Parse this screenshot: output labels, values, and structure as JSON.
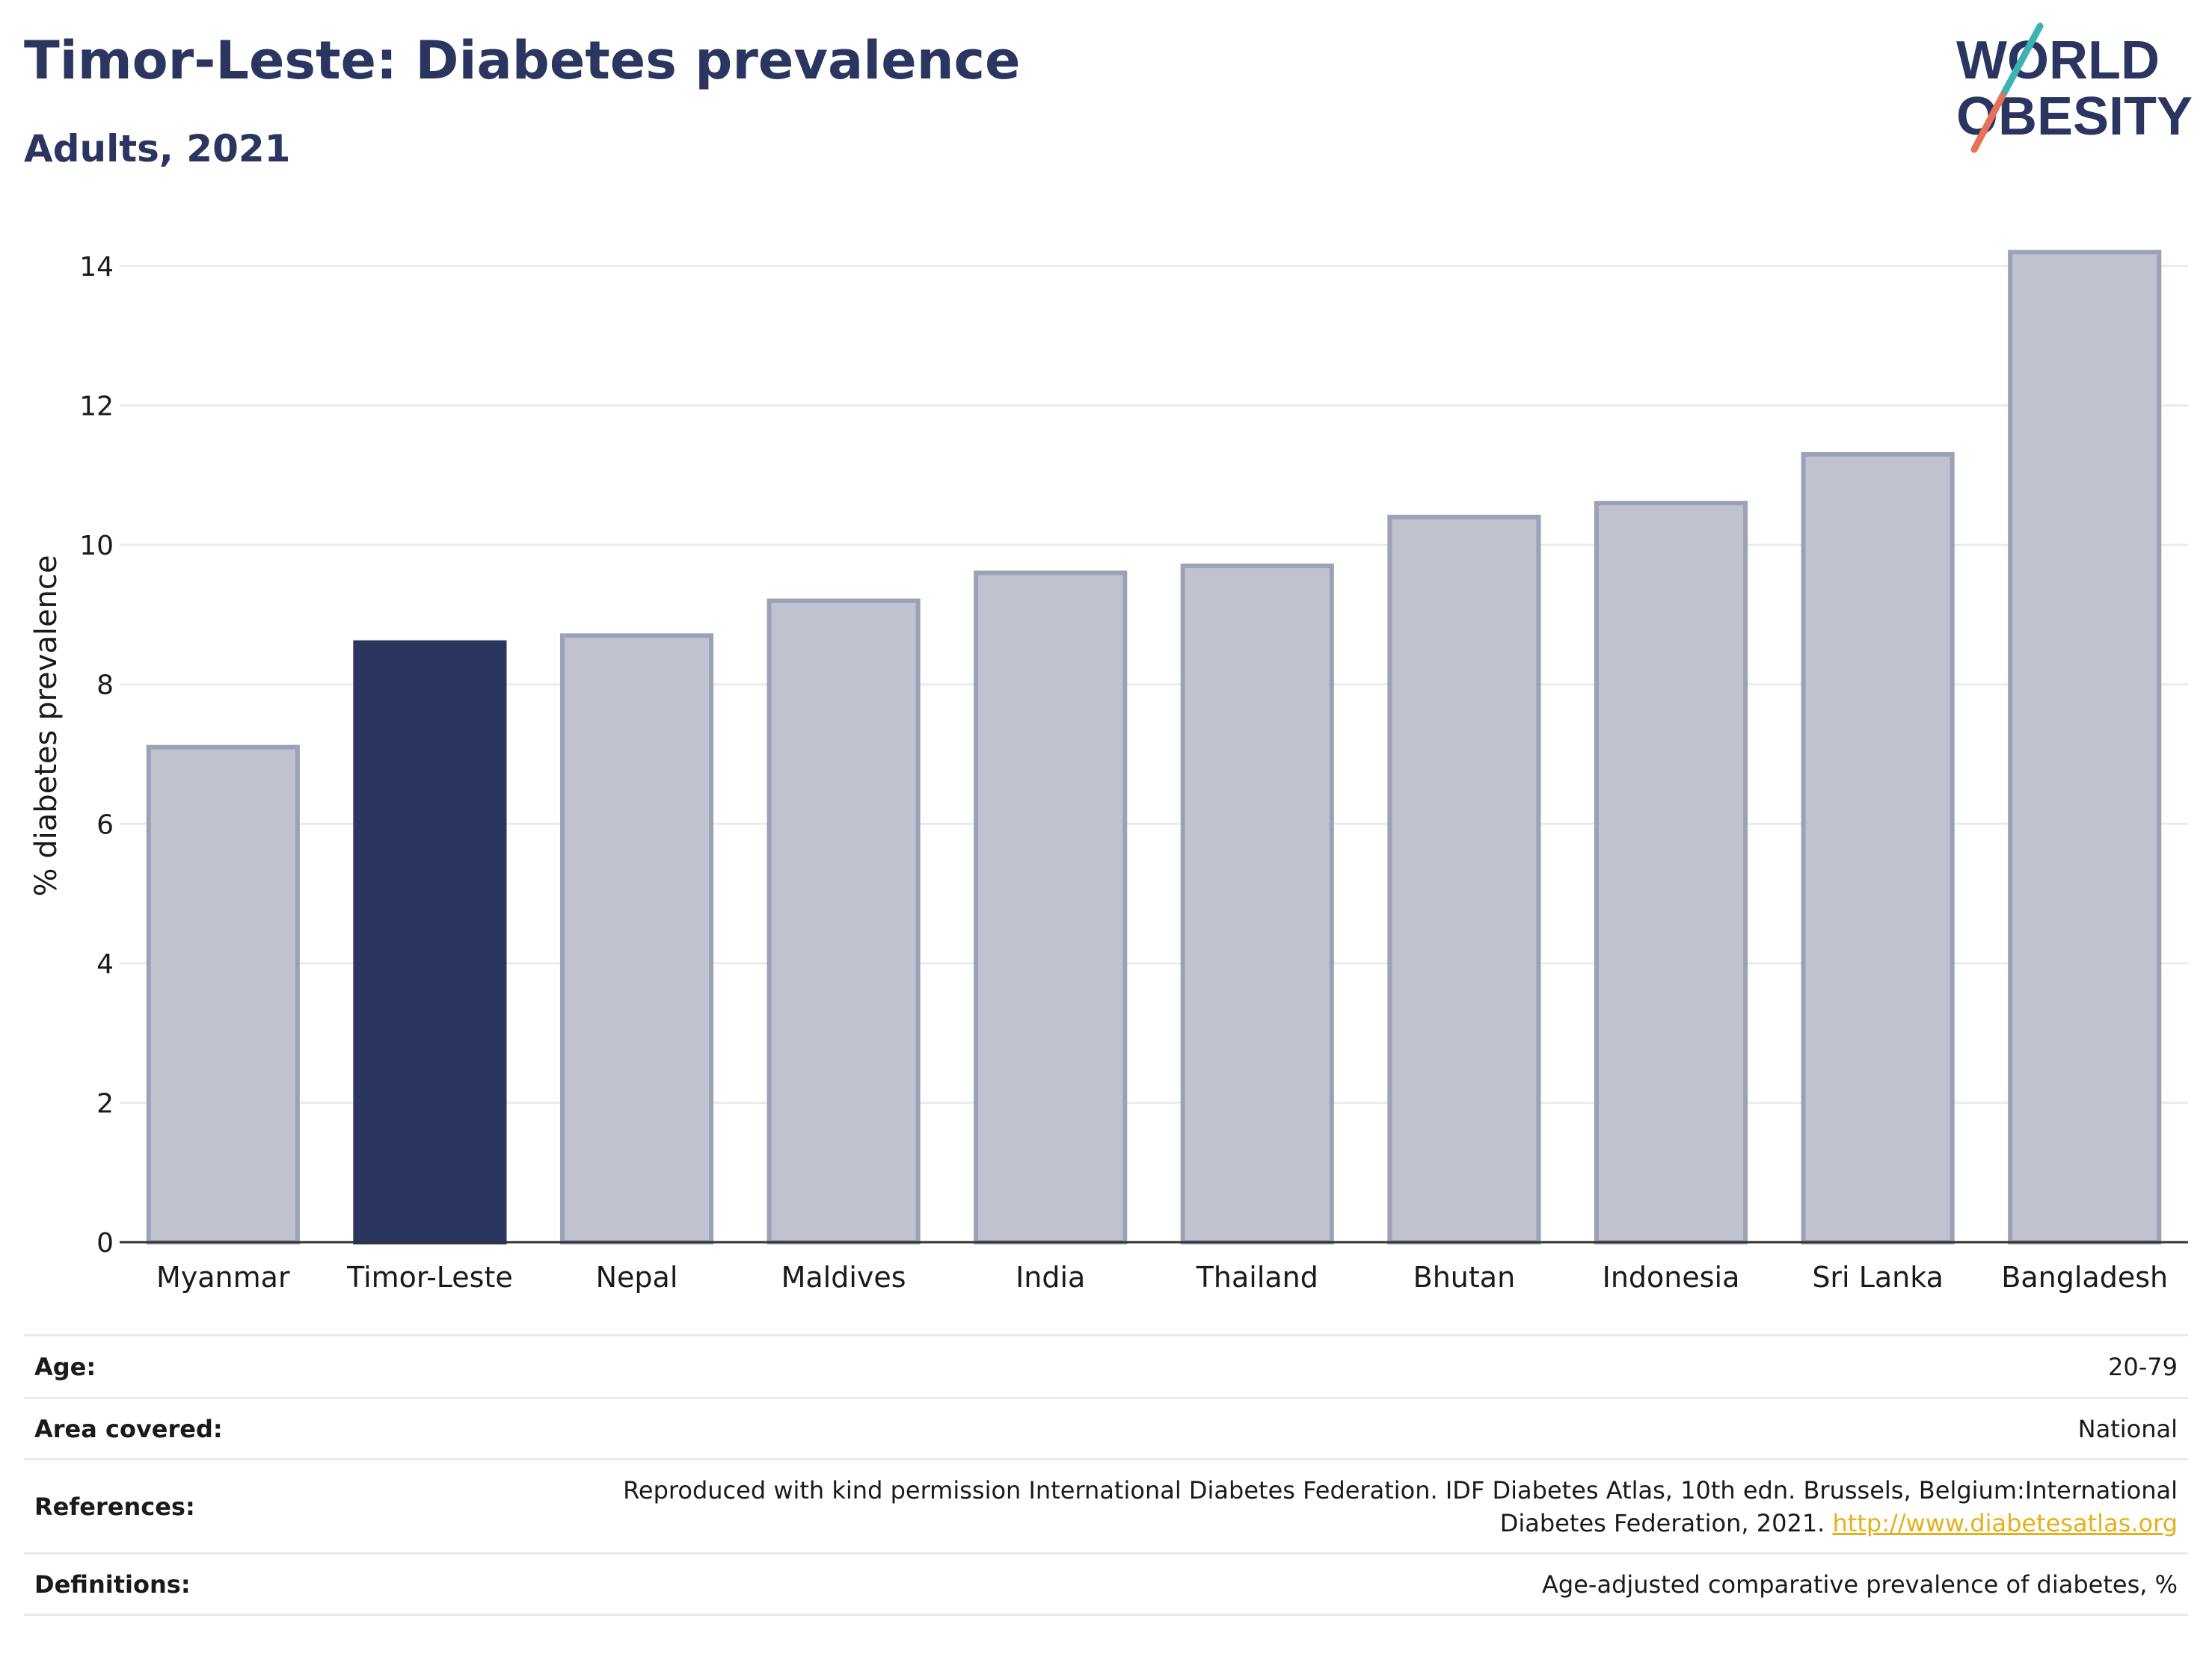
{
  "header": {
    "title": "Timor-Leste: Diabetes prevalence",
    "subtitle": "Adults, 2021"
  },
  "logo": {
    "line1": "WORLD",
    "line2": "OBESITY",
    "text_color": "#2a3560",
    "slash_colors": [
      "#3bb3b0",
      "#e8715a"
    ]
  },
  "chart_data": {
    "type": "bar",
    "categories": [
      "Myanmar",
      "Timor-Leste",
      "Nepal",
      "Maldives",
      "India",
      "Thailand",
      "Bhutan",
      "Indonesia",
      "Sri Lanka",
      "Bangladesh"
    ],
    "values": [
      7.1,
      8.6,
      8.7,
      9.2,
      9.6,
      9.7,
      10.4,
      10.6,
      11.3,
      14.2
    ],
    "highlight": "Timor-Leste",
    "ylabel": "% diabetes prevalence",
    "ylim": [
      0,
      14.6
    ],
    "yticks": [
      0,
      2,
      4,
      6,
      8,
      10,
      12,
      14
    ],
    "grid": true,
    "colors": {
      "highlight": "#2a3560",
      "default_fill": "#c0c3cf",
      "default_stroke": "#9ca1b6"
    }
  },
  "info": {
    "rows": [
      {
        "label": "Age:",
        "value": "20-79"
      },
      {
        "label": "Area covered:",
        "value": "National"
      },
      {
        "label": "References:",
        "value_line1": "Reproduced with kind permission International Diabetes Federation.  IDF Diabetes Atlas, 10th edn. Brussels, Belgium:International",
        "value_line2": "Diabetes Federation, 2021. ",
        "link": "http://www.diabetesatlas.org"
      },
      {
        "label": "Definitions:",
        "value": "Age-adjusted comparative prevalence of diabetes, %"
      }
    ]
  }
}
